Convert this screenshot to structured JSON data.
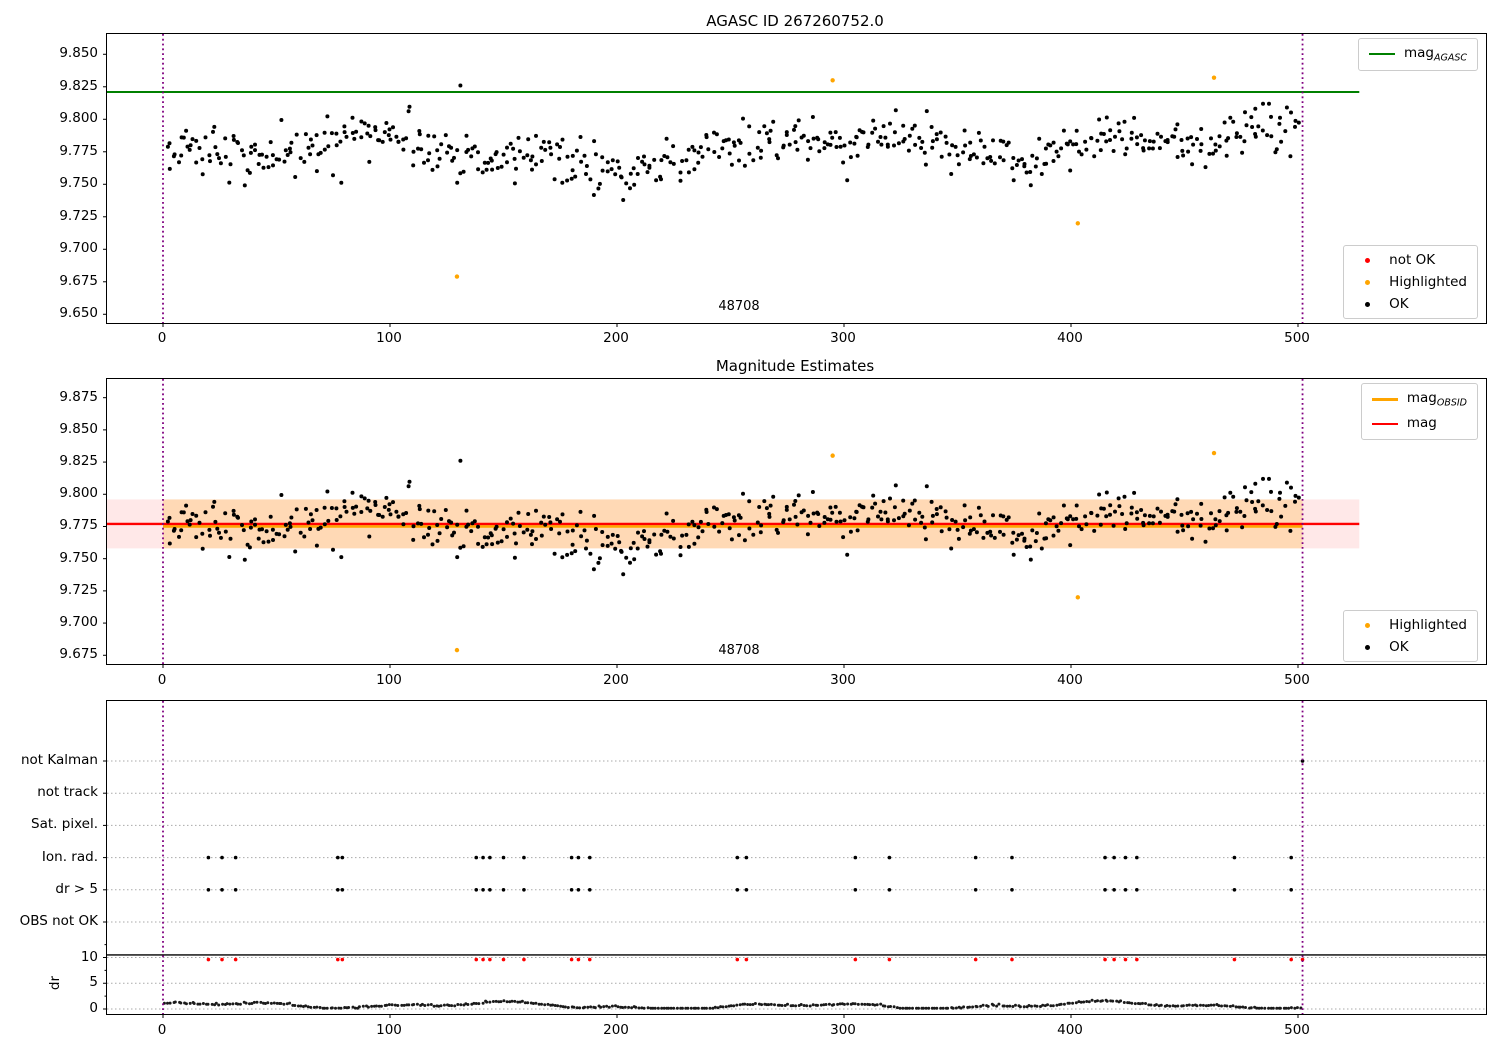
{
  "colors": {
    "green_line": "#008000",
    "orange": "#ffa500",
    "red": "#ff0000",
    "black": "#000000",
    "purple_vline": "#800080",
    "red_band": "rgba(255,0,0,0.09)",
    "orange_band": "rgba(255,165,0,0.22)",
    "grid": "#aaaaaa",
    "spine": "#000000"
  },
  "top_plot": {
    "title": "AGASC ID 267260752.0",
    "x_tick_labels": [
      "0",
      "100",
      "200",
      "300",
      "400",
      "500"
    ],
    "x_tick_values": [
      0,
      100,
      200,
      300,
      400,
      500
    ],
    "y_tick_labels": [
      "9.850",
      "9.825",
      "9.800",
      "9.775",
      "9.750",
      "9.725",
      "9.700",
      "9.675",
      "9.650"
    ],
    "y_tick_values": [
      9.85,
      9.825,
      9.8,
      9.775,
      9.75,
      9.725,
      9.7,
      9.675,
      9.65
    ],
    "agasc_line_y": 9.821,
    "vlines_x": [
      0,
      502
    ],
    "annotation": {
      "text": "48708",
      "x": 252
    },
    "legend_line": {
      "main": "mag",
      "sub": "AGASC"
    },
    "legend_points": [
      {
        "label": "not OK",
        "color": "#ff0000"
      },
      {
        "label": "Highlighted",
        "color": "#ffa500"
      },
      {
        "label": "OK",
        "color": "#000000"
      }
    ],
    "highlighted_points": [
      [
        129.5,
        9.679
      ],
      [
        295,
        9.83
      ],
      [
        403,
        9.72
      ],
      [
        463,
        9.832
      ]
    ],
    "notable_black_points": [
      [
        131,
        9.826
      ]
    ]
  },
  "middle_plot": {
    "title": "Magnitude Estimates",
    "x_tick_labels": [
      "0",
      "100",
      "200",
      "300",
      "400",
      "500"
    ],
    "x_tick_values": [
      0,
      100,
      200,
      300,
      400,
      500
    ],
    "y_tick_labels": [
      "9.875",
      "9.850",
      "9.825",
      "9.800",
      "9.775",
      "9.750",
      "9.725",
      "9.700",
      "9.675"
    ],
    "y_tick_values": [
      9.875,
      9.85,
      9.825,
      9.8,
      9.775,
      9.75,
      9.725,
      9.7,
      9.675
    ],
    "mag_line_y": 9.777,
    "obsid_line_y": 9.775,
    "band": [
      9.758,
      9.796
    ],
    "vlines_x": [
      0,
      502
    ],
    "annotation": {
      "text": "48708",
      "x": 252
    },
    "legend_lines": [
      {
        "main": "mag",
        "sub": "OBSID",
        "color": "#ffa500"
      },
      {
        "main": "mag",
        "sub": "",
        "color": "#ff0000"
      }
    ],
    "legend_points": [
      {
        "label": "Highlighted",
        "color": "#ffa500"
      },
      {
        "label": "OK",
        "color": "#000000"
      }
    ],
    "highlighted_points": [
      [
        129.5,
        9.679
      ],
      [
        295,
        9.83
      ],
      [
        403,
        9.72
      ],
      [
        463,
        9.832
      ]
    ]
  },
  "bottom_plot": {
    "categories": [
      "not Kalman",
      "not track",
      "Sat. pixel.",
      "Ion. rad.",
      "dr > 5",
      "OBS not OK"
    ],
    "dr_tick_labels": [
      "10",
      "5",
      "0"
    ],
    "dr_tick_values": [
      10,
      5,
      0
    ],
    "ylabel": "dr",
    "x_tick_labels": [
      "0",
      "100",
      "200",
      "300",
      "400",
      "500"
    ],
    "x_tick_values": [
      0,
      100,
      200,
      300,
      400,
      500
    ],
    "hline_dr": 10.5,
    "vlines_x": [
      0,
      502
    ],
    "flag_x": [
      20,
      26,
      32,
      77,
      79,
      138,
      141,
      144,
      150,
      159,
      180,
      183,
      188,
      253,
      257,
      305,
      320,
      358,
      374,
      415,
      419,
      424,
      429,
      472,
      497
    ],
    "dr_clip_x": [
      20,
      26,
      32,
      77,
      79,
      138,
      141,
      144,
      150,
      159,
      180,
      183,
      188,
      253,
      257,
      305,
      320,
      358,
      374,
      415,
      419,
      424,
      429,
      472,
      497,
      502
    ],
    "not_kalman_x": [
      502
    ]
  },
  "scatter_params": {
    "seed": 42,
    "n": 560,
    "x_min": 2,
    "x_max": 500,
    "mean": 9.7775,
    "noise_sd": 0.0095,
    "clamp": [
      9.7225,
      9.827
    ]
  },
  "dr_series_params": {
    "seed": 7,
    "n": 420,
    "x_min": 1,
    "x_max": 501,
    "base": 1.05,
    "clamp": [
      0.15,
      2.5
    ]
  },
  "chart_data": [
    {
      "type": "scatter",
      "title": "AGASC ID 267260752.0",
      "xlim": [
        -25,
        583
      ],
      "ylim": [
        9.643,
        9.866
      ],
      "x_ticks": [
        0,
        100,
        200,
        300,
        400,
        500
      ],
      "y_ticks": [
        9.65,
        9.675,
        9.7,
        9.725,
        9.75,
        9.775,
        9.8,
        9.825,
        9.85
      ],
      "grid": false,
      "legend_position": [
        "upper right",
        "lower right"
      ],
      "legend_entries": [
        "mag_AGASC",
        "not OK",
        "Highlighted",
        "OK"
      ],
      "hlines": [
        {
          "name": "mag_AGASC",
          "y": 9.821,
          "color": "green",
          "x_range": [
            -25,
            527
          ]
        }
      ],
      "vlines": [
        {
          "x": 0,
          "style": "dotted",
          "color": "purple"
        },
        {
          "x": 502,
          "style": "dotted",
          "color": "purple"
        }
      ],
      "ok_series_summary": {
        "n_approx": 560,
        "x_range": [
          0,
          500
        ],
        "y_mean": 9.777,
        "y_sd": 0.011,
        "y_range": [
          9.72,
          9.828
        ]
      },
      "highlighted_points": [
        [
          129.5,
          9.679
        ],
        [
          295,
          9.83
        ],
        [
          403,
          9.72
        ],
        [
          463,
          9.832
        ]
      ],
      "annotations": [
        {
          "text": "48708",
          "x": 252,
          "y": 9.655
        }
      ]
    },
    {
      "type": "scatter",
      "title": "Magnitude Estimates",
      "xlim": [
        -25,
        583
      ],
      "ylim": [
        9.668,
        9.8895
      ],
      "x_ticks": [
        0,
        100,
        200,
        300,
        400,
        500
      ],
      "y_ticks": [
        9.675,
        9.7,
        9.725,
        9.75,
        9.775,
        9.8,
        9.825,
        9.85,
        9.875
      ],
      "grid": false,
      "legend_position": [
        "upper right",
        "lower right"
      ],
      "legend_entries": [
        "mag_OBSID",
        "mag",
        "Highlighted",
        "OK"
      ],
      "hlines": [
        {
          "name": "mag",
          "y": 9.777,
          "color": "red",
          "x_range": [
            -25,
            527
          ]
        },
        {
          "name": "mag_OBSID",
          "y": 9.775,
          "color": "orange",
          "x_range": [
            0,
            502
          ]
        }
      ],
      "bands": [
        {
          "y_range": [
            9.758,
            9.796
          ],
          "color": "light red",
          "x_range": [
            -25,
            527
          ]
        },
        {
          "y_range": [
            9.758,
            9.796
          ],
          "color": "light orange",
          "x_range": [
            0,
            502
          ]
        }
      ],
      "vlines": [
        {
          "x": 0,
          "style": "dotted",
          "color": "purple"
        },
        {
          "x": 502,
          "style": "dotted",
          "color": "purple"
        }
      ],
      "ok_series_summary": {
        "n_approx": 560,
        "x_range": [
          0,
          500
        ],
        "y_mean": 9.777,
        "y_sd": 0.011,
        "y_range": [
          9.72,
          9.828
        ]
      },
      "highlighted_points": [
        [
          129.5,
          9.679
        ],
        [
          295,
          9.83
        ],
        [
          403,
          9.72
        ],
        [
          463,
          9.832
        ]
      ],
      "annotations": [
        {
          "text": "48708",
          "x": 252,
          "y": 9.68
        }
      ]
    },
    {
      "type": "scatter",
      "title": "",
      "xlim": [
        -25,
        583
      ],
      "x_ticks": [
        0,
        100,
        200,
        300,
        400,
        500
      ],
      "category_rows": [
        "not Kalman",
        "not track",
        "Sat. pixel.",
        "Ion. rad.",
        "dr > 5",
        "OBS not OK"
      ],
      "dr_axis": {
        "label": "dr",
        "ticks": [
          0,
          5,
          10
        ],
        "solid_hline_at": 10.5
      },
      "grid": "dotted horizontal at each row and dr ticks",
      "ion_rad_event_x": [
        20,
        26,
        32,
        77,
        79,
        138,
        141,
        144,
        150,
        159,
        180,
        183,
        188,
        253,
        257,
        305,
        320,
        358,
        374,
        415,
        419,
        424,
        429,
        472,
        497
      ],
      "dr_gt5_event_x": [
        20,
        26,
        32,
        77,
        79,
        138,
        141,
        144,
        150,
        159,
        180,
        183,
        188,
        253,
        257,
        305,
        320,
        358,
        374,
        415,
        419,
        424,
        429,
        472,
        497
      ],
      "dr_clipped_at_10_x": [
        20,
        26,
        32,
        77,
        79,
        138,
        141,
        144,
        150,
        159,
        180,
        183,
        188,
        253,
        257,
        305,
        320,
        358,
        374,
        415,
        419,
        424,
        429,
        472,
        497,
        502
      ],
      "not_kalman_event_x": [
        502
      ],
      "dr_series_summary": {
        "n_approx": 420,
        "x_range": [
          0,
          502
        ],
        "value_range": [
          0.2,
          2.5
        ],
        "description": "dense wandering track between 0 and ~2.5"
      },
      "vlines": [
        {
          "x": 0,
          "style": "dotted",
          "color": "purple"
        },
        {
          "x": 502,
          "style": "dotted",
          "color": "purple"
        }
      ]
    }
  ]
}
